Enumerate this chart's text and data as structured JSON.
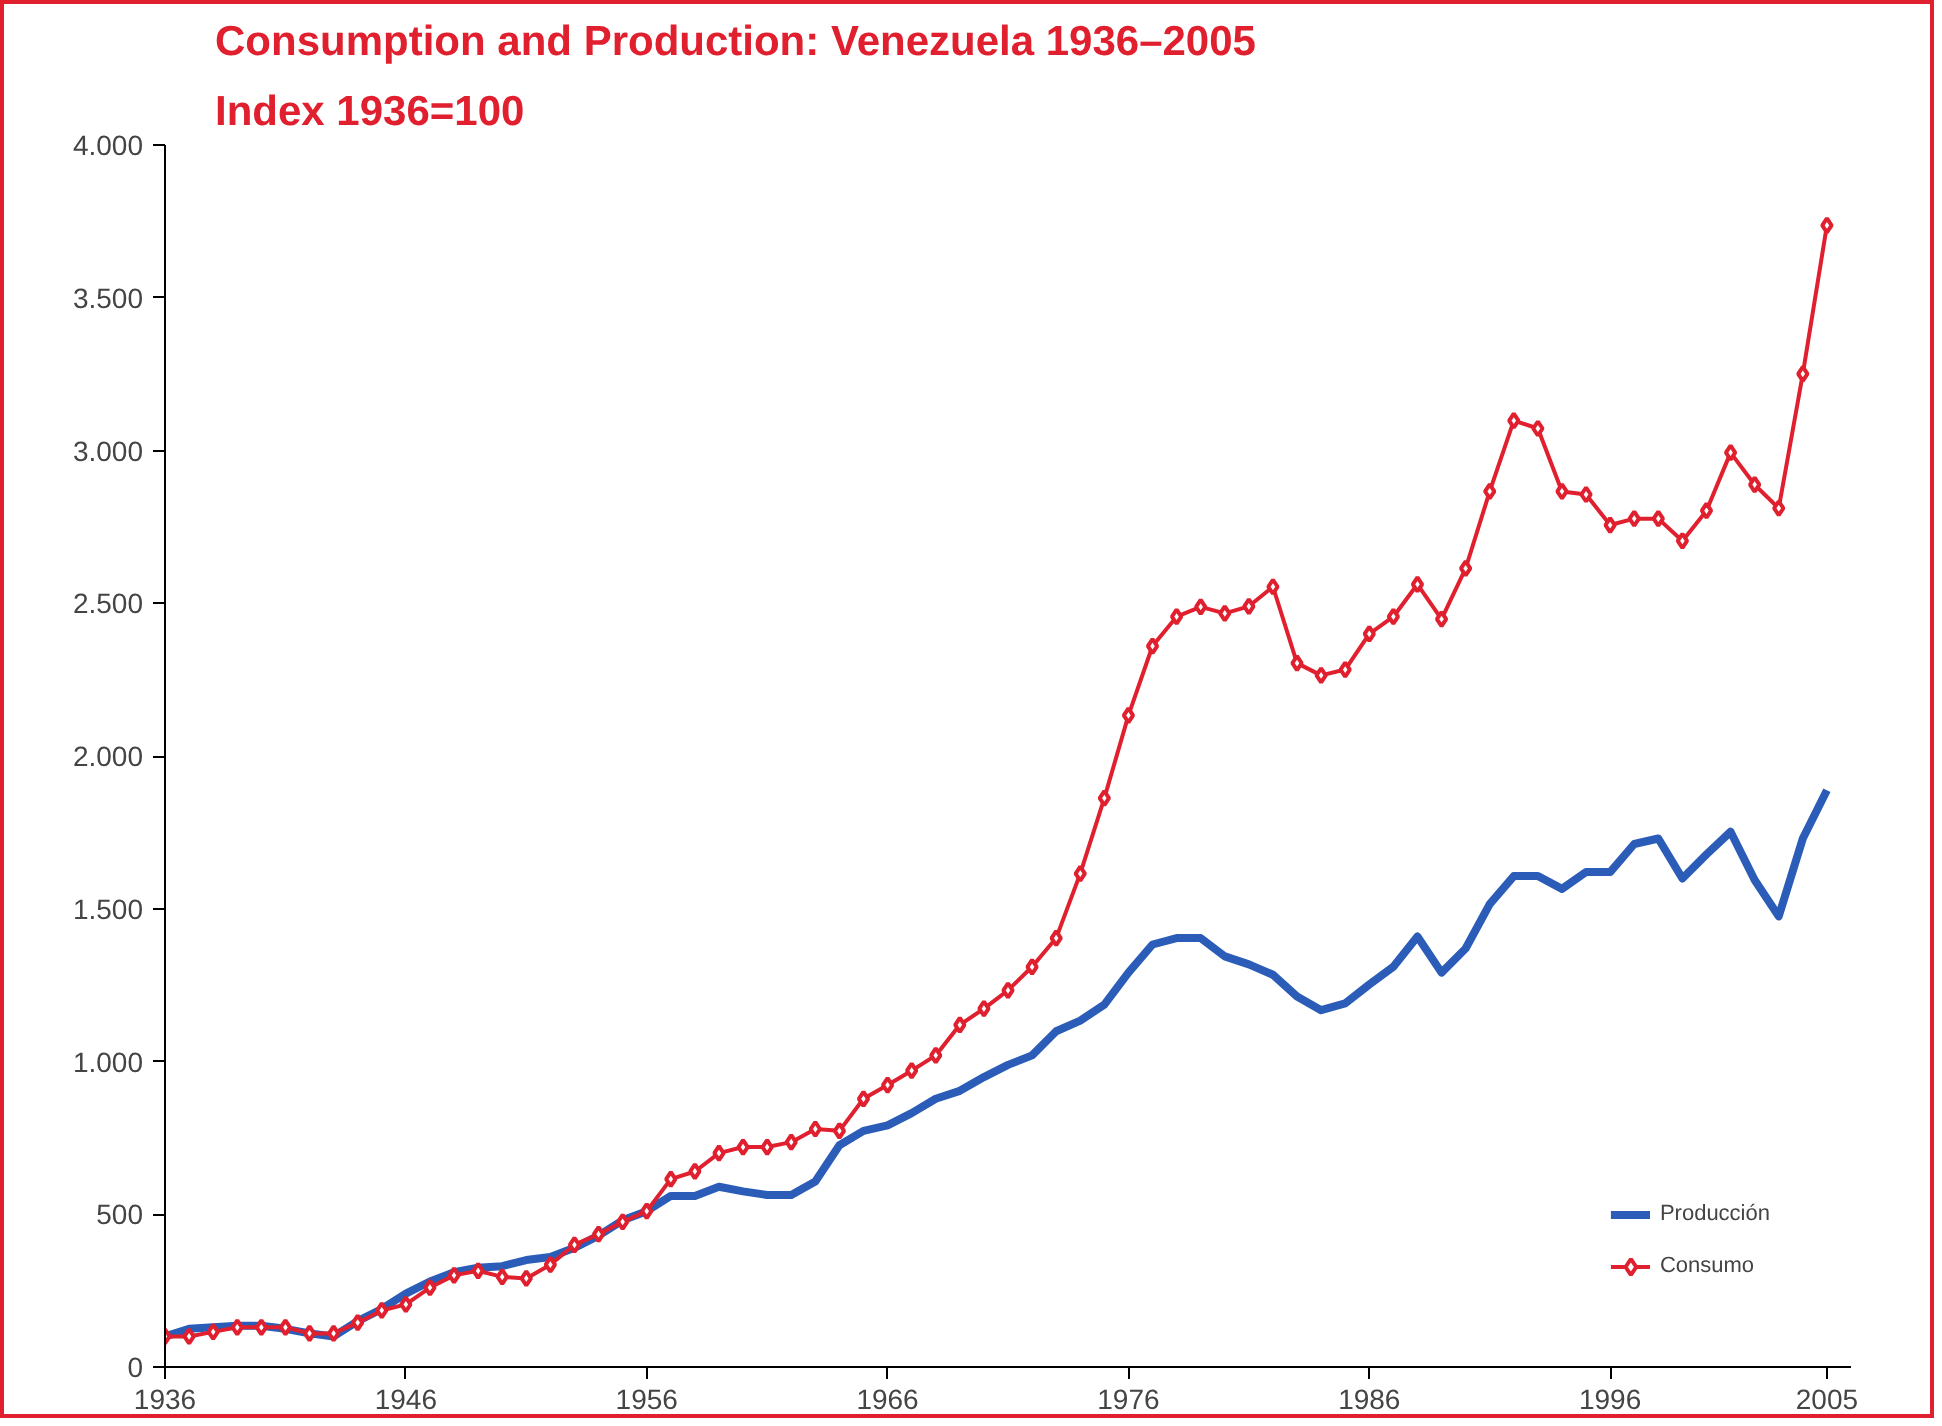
{
  "chart_data": {
    "type": "line",
    "title": "Consumption and Production: Venezuela 1936–2005",
    "subtitle": "Index 1936=100",
    "x": [
      1936,
      1937,
      1938,
      1939,
      1940,
      1941,
      1942,
      1943,
      1944,
      1945,
      1946,
      1947,
      1948,
      1949,
      1950,
      1951,
      1952,
      1953,
      1954,
      1955,
      1956,
      1957,
      1958,
      1959,
      1960,
      1961,
      1962,
      1963,
      1964,
      1965,
      1966,
      1967,
      1968,
      1969,
      1970,
      1971,
      1972,
      1973,
      1974,
      1975,
      1976,
      1977,
      1978,
      1979,
      1980,
      1981,
      1982,
      1983,
      1984,
      1985,
      1986,
      1987,
      1988,
      1989,
      1990,
      1991,
      1992,
      1993,
      1994,
      1995,
      1996,
      1997,
      1998,
      1999,
      2000,
      2001,
      2002,
      2003,
      2004,
      2005
    ],
    "series": [
      {
        "name": "Producción",
        "color": "#2a5cb8",
        "marker": "none",
        "values": [
          100,
          125,
          130,
          135,
          135,
          125,
          110,
          100,
          150,
          190,
          240,
          280,
          310,
          325,
          330,
          350,
          360,
          390,
          430,
          480,
          510,
          560,
          560,
          590,
          575,
          563,
          563,
          607,
          726,
          773,
          791,
          831,
          878,
          904,
          949,
          989,
          1020,
          1099,
          1134,
          1186,
          1291,
          1383,
          1404,
          1404,
          1344,
          1318,
          1284,
          1213,
          1168,
          1190,
          1252,
          1310,
          1409,
          1291,
          1370,
          1515,
          1607,
          1607,
          1565,
          1620,
          1620,
          1712,
          1730,
          1599,
          1678,
          1752,
          1594,
          1475,
          1730,
          1888
        ]
      },
      {
        "name": "Consumo",
        "color": "#e0202e",
        "marker": "diamond",
        "values": [
          100,
          100,
          115,
          130,
          130,
          130,
          110,
          110,
          145,
          185,
          205,
          260,
          300,
          315,
          295,
          290,
          335,
          400,
          435,
          475,
          510,
          615,
          640,
          700,
          720,
          720,
          736,
          779,
          773,
          878,
          923,
          970,
          1020,
          1120,
          1173,
          1233,
          1310,
          1404,
          1615,
          1862,
          2133,
          2360,
          2456,
          2488,
          2467,
          2490,
          2554,
          2304,
          2264,
          2283,
          2400,
          2456,
          2562,
          2448,
          2614,
          2866,
          3098,
          3072,
          2866,
          2856,
          2756,
          2777,
          2777,
          2704,
          2803,
          2993,
          2888,
          2811,
          3251,
          3737
        ]
      }
    ],
    "xlim": [
      1936,
      2006
    ],
    "xticks": [
      1936,
      1946,
      1956,
      1966,
      1976,
      1986,
      1996,
      2005
    ],
    "ylim": [
      0,
      4000
    ],
    "yticks": [
      {
        "value": 0,
        "label": "0"
      },
      {
        "value": 500,
        "label": "500"
      },
      {
        "value": 1000,
        "label": "1.000"
      },
      {
        "value": 1500,
        "label": "1.500"
      },
      {
        "value": 2000,
        "label": "2.000"
      },
      {
        "value": 2500,
        "label": "2.500"
      },
      {
        "value": 3000,
        "label": "3.000"
      },
      {
        "value": 3500,
        "label": "3.500"
      },
      {
        "value": 4000,
        "label": "4.000"
      }
    ],
    "grid": false,
    "legend": "bottom right"
  }
}
